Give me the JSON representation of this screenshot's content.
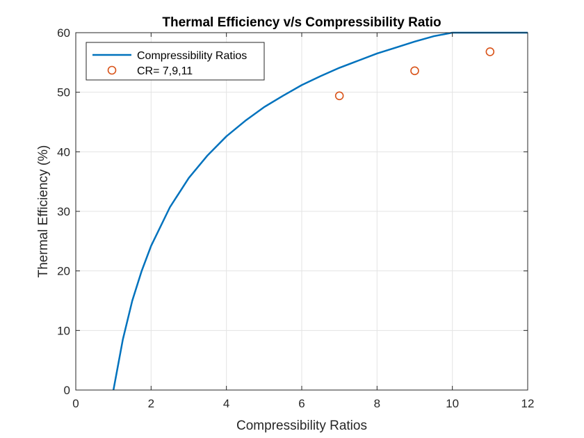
{
  "chart_data": {
    "type": "line",
    "title": "Thermal Efficiency v/s Compressibility Ratio",
    "xlabel": "Compressibility Ratios",
    "ylabel": "Thermal Efficiency (%)",
    "xlim": [
      0,
      12
    ],
    "ylim": [
      0,
      60
    ],
    "xticks": [
      "0",
      "2",
      "4",
      "6",
      "8",
      "10",
      "12"
    ],
    "yticks": [
      "0",
      "10",
      "20",
      "30",
      "40",
      "50",
      "60"
    ],
    "grid": true,
    "legend_position": "top-left",
    "series": [
      {
        "name": "Compressibility Ratios",
        "kind": "line",
        "color": "#0072BD",
        "x": [
          1,
          1.25,
          1.5,
          1.75,
          2,
          2.5,
          3,
          3.5,
          4,
          4.5,
          5,
          5.5,
          6,
          6.5,
          7,
          7.5,
          8,
          8.5,
          9,
          9.5,
          10,
          10.5,
          11,
          11.5,
          12
        ],
        "y": [
          0,
          8.5,
          15.0,
          20.0,
          24.2,
          30.7,
          35.6,
          39.4,
          42.6,
          45.2,
          47.5,
          49.4,
          51.2,
          52.7,
          54.1,
          55.3,
          56.5,
          57.5,
          58.5,
          59.4,
          60.2,
          61.0,
          61.7,
          62.4,
          63.0
        ]
      },
      {
        "name": "CR= 7,9,11",
        "kind": "marker",
        "color": "#D95319",
        "x": [
          7,
          9,
          11
        ],
        "y": [
          49.4,
          53.6,
          56.8
        ]
      }
    ]
  }
}
